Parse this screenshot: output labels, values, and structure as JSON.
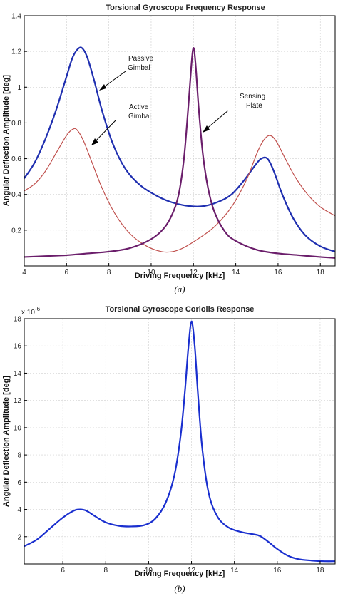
{
  "chart_data": [
    {
      "type": "line",
      "title": "Torsional Gyroscope Frequency Response",
      "xlabel": "Driving Frequency [kHz]",
      "ylabel": "Angular Deflection Amplitude [deg]",
      "caption": "(a)",
      "xlim": [
        4,
        18.7
      ],
      "ylim": [
        0,
        1.4
      ],
      "xticks": [
        4,
        6,
        8,
        10,
        12,
        14,
        16,
        18
      ],
      "yticks": [
        0.2,
        0.4,
        0.6,
        0.8,
        1,
        1.2,
        1.4
      ],
      "grid": true,
      "annotations": [
        {
          "text": [
            "Passive",
            "Gimbal"
          ],
          "series": "Passive Gimbal"
        },
        {
          "text": [
            "Active",
            "Gimbal"
          ],
          "series": "Active Gimbal"
        },
        {
          "text": [
            "Sensing",
            "Plate"
          ],
          "series": "Sensing Plate"
        }
      ],
      "series": [
        {
          "name": "Passive Gimbal",
          "color": "#1f2fb0",
          "x": [
            4.0,
            4.5,
            5.0,
            5.5,
            6.0,
            6.3,
            6.6,
            6.8,
            7.0,
            7.3,
            7.7,
            8.2,
            8.8,
            9.5,
            10.3,
            11.0,
            11.8,
            12.5,
            13.2,
            13.8,
            14.4,
            14.9,
            15.2,
            15.5,
            15.8,
            16.2,
            16.7,
            17.3,
            18.0,
            18.7
          ],
          "y": [
            0.49,
            0.58,
            0.71,
            0.87,
            1.06,
            1.17,
            1.22,
            1.21,
            1.16,
            1.04,
            0.86,
            0.68,
            0.54,
            0.45,
            0.39,
            0.355,
            0.335,
            0.335,
            0.36,
            0.4,
            0.48,
            0.56,
            0.6,
            0.6,
            0.53,
            0.4,
            0.27,
            0.17,
            0.11,
            0.08
          ]
        },
        {
          "name": "Active Gimbal",
          "color": "#c0504d",
          "x": [
            4.0,
            4.5,
            5.0,
            5.5,
            6.0,
            6.3,
            6.5,
            6.8,
            7.2,
            7.7,
            8.3,
            9.0,
            9.8,
            10.5,
            11.0,
            11.5,
            12.2,
            13.0,
            13.8,
            14.5,
            15.0,
            15.3,
            15.6,
            15.9,
            16.3,
            16.8,
            17.4,
            18.0,
            18.7
          ],
          "y": [
            0.42,
            0.46,
            0.53,
            0.63,
            0.73,
            0.765,
            0.76,
            0.7,
            0.58,
            0.43,
            0.29,
            0.18,
            0.11,
            0.08,
            0.08,
            0.1,
            0.15,
            0.22,
            0.33,
            0.48,
            0.63,
            0.7,
            0.73,
            0.7,
            0.61,
            0.5,
            0.4,
            0.33,
            0.28
          ]
        },
        {
          "name": "Sensing Plate",
          "color": "#6b1e6b",
          "x": [
            4.0,
            5.0,
            6.0,
            7.0,
            8.0,
            9.0,
            10.0,
            10.6,
            11.0,
            11.3,
            11.55,
            11.75,
            11.9,
            12.0,
            12.1,
            12.25,
            12.45,
            12.7,
            13.0,
            13.5,
            14.0,
            15.0,
            16.0,
            17.0,
            18.0,
            18.7
          ],
          "y": [
            0.05,
            0.055,
            0.06,
            0.07,
            0.08,
            0.1,
            0.15,
            0.21,
            0.29,
            0.4,
            0.6,
            0.88,
            1.12,
            1.22,
            1.13,
            0.88,
            0.62,
            0.43,
            0.3,
            0.19,
            0.14,
            0.09,
            0.07,
            0.06,
            0.05,
            0.045
          ]
        }
      ]
    },
    {
      "type": "line",
      "title": "Torsional Gyroscope Coriolis Response",
      "xlabel": "Driving Frequency [kHz]",
      "ylabel": "Angular Deflection Amplitude [deg]",
      "caption": "(b)",
      "scale_label": "x 10",
      "scale_exponent": "-6",
      "xlim": [
        4.2,
        18.7
      ],
      "ylim": [
        0,
        18
      ],
      "xticks": [
        6,
        8,
        10,
        12,
        14,
        16,
        18
      ],
      "yticks": [
        2,
        4,
        6,
        8,
        10,
        12,
        14,
        16,
        18
      ],
      "grid": true,
      "series": [
        {
          "name": "",
          "color": "#1a2fcf",
          "x": [
            4.2,
            4.8,
            5.4,
            6.0,
            6.5,
            6.8,
            7.1,
            7.5,
            8.0,
            8.6,
            9.2,
            9.8,
            10.3,
            10.8,
            11.2,
            11.5,
            11.7,
            11.85,
            12.0,
            12.15,
            12.3,
            12.5,
            12.8,
            13.2,
            13.7,
            14.3,
            14.8,
            15.2,
            15.6,
            16.0,
            16.5,
            17.0,
            17.6,
            18.2,
            18.7
          ],
          "y": [
            1.3,
            1.8,
            2.6,
            3.4,
            3.9,
            4.0,
            3.9,
            3.5,
            3.05,
            2.8,
            2.75,
            2.85,
            3.3,
            4.5,
            6.5,
            9.5,
            12.8,
            15.8,
            17.8,
            16.0,
            12.5,
            8.5,
            5.2,
            3.5,
            2.7,
            2.35,
            2.2,
            2.05,
            1.6,
            1.1,
            0.6,
            0.35,
            0.25,
            0.2,
            0.2
          ]
        }
      ]
    }
  ]
}
